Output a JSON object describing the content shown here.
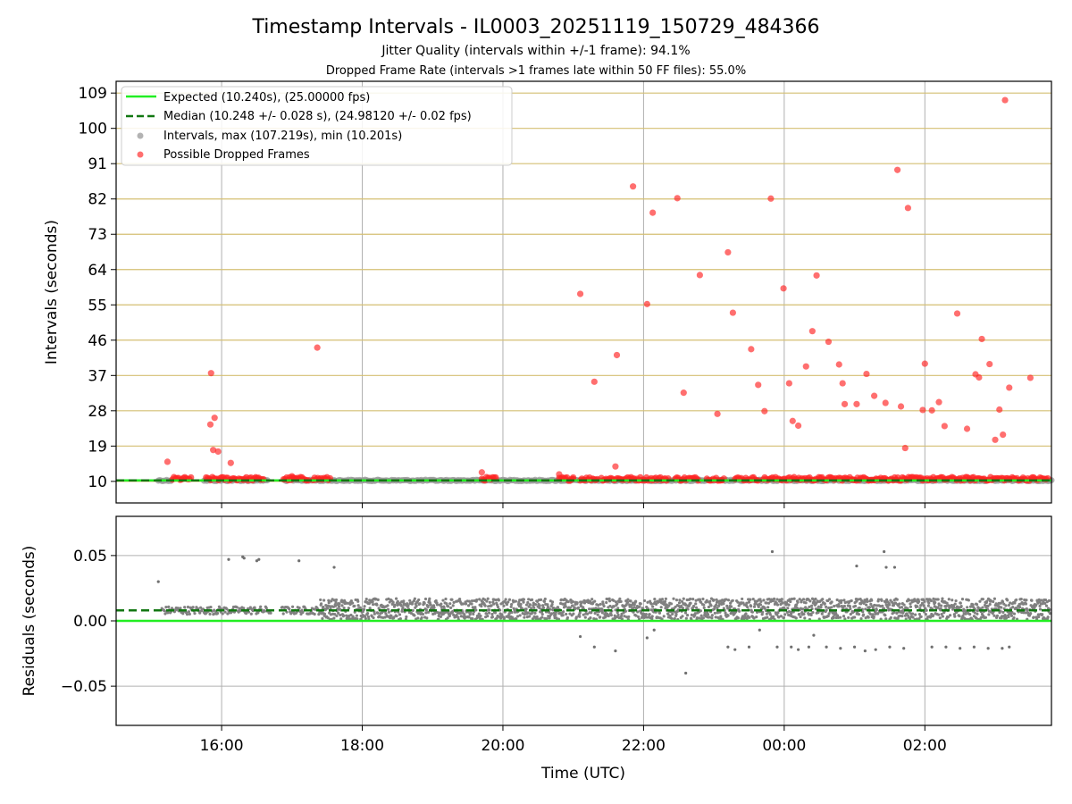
{
  "chart_data": {
    "type": "scatter",
    "title": "Timestamp Intervals - IL0003_20251119_150729_484366",
    "subtitles": [
      "Jitter Quality (intervals within +/-1 frame): 94.1%",
      "Dropped Frame Rate (intervals >1 frames late within 50 FF files): 55.0%"
    ],
    "xlabel": "Time (UTC)",
    "xlim_hours": [
      14.5,
      27.8
    ],
    "xticks": [
      {
        "h": 16,
        "label": "16:00"
      },
      {
        "h": 18,
        "label": "18:00"
      },
      {
        "h": 20,
        "label": "20:00"
      },
      {
        "h": 22,
        "label": "22:00"
      },
      {
        "h": 24,
        "label": "00:00"
      },
      {
        "h": 26,
        "label": "02:00"
      }
    ],
    "top_panel": {
      "ylabel": "Intervals (seconds)",
      "ylim": [
        4.5,
        112
      ],
      "yticks": [
        10,
        19,
        28,
        37,
        46,
        55,
        64,
        73,
        82,
        91,
        100,
        109
      ],
      "expected": 10.24,
      "median": 10.248,
      "legend": [
        {
          "key": "expected",
          "label": "Expected (10.240s), (25.00000 fps)",
          "color": "#22ee22"
        },
        {
          "key": "median",
          "label": "Median (10.248 +/- 0.028 s), (24.98120 +/- 0.02 fps)",
          "color": "#117711"
        },
        {
          "key": "intervals",
          "label": "Intervals, max (107.219s), min (10.201s)",
          "color": "#999999"
        },
        {
          "key": "dropped",
          "label": "Possible Dropped Frames",
          "color": "#ff2222"
        }
      ],
      "interval_ranges": [
        [
          15.1,
          15.28
        ],
        [
          15.75,
          16.65
        ],
        [
          16.9,
          17.4
        ],
        [
          17.4,
          27.8
        ]
      ],
      "dense_red_ranges": [
        [
          15.3,
          15.58
        ],
        [
          15.78,
          16.6
        ],
        [
          16.88,
          17.25
        ],
        [
          17.3,
          17.55
        ],
        [
          19.7,
          19.9
        ],
        [
          20.8,
          21.0
        ],
        [
          21.1,
          21.35
        ],
        [
          21.4,
          21.8
        ],
        [
          21.8,
          22.35
        ],
        [
          22.45,
          22.8
        ],
        [
          22.9,
          23.15
        ],
        [
          23.3,
          23.65
        ],
        [
          23.7,
          27.75
        ]
      ],
      "dropped_points": [
        [
          15.23,
          15.0
        ],
        [
          15.85,
          37.6
        ],
        [
          15.84,
          24.5
        ],
        [
          15.9,
          26.2
        ],
        [
          15.88,
          18.0
        ],
        [
          15.95,
          17.6
        ],
        [
          16.13,
          14.7
        ],
        [
          17.36,
          44.1
        ],
        [
          17.0,
          11.3
        ],
        [
          19.7,
          12.3
        ],
        [
          20.8,
          11.8
        ],
        [
          21.0,
          11.0
        ],
        [
          21.1,
          57.8
        ],
        [
          21.3,
          35.4
        ],
        [
          21.6,
          13.8
        ],
        [
          21.62,
          42.2
        ],
        [
          21.85,
          85.2
        ],
        [
          22.05,
          55.2
        ],
        [
          22.13,
          78.5
        ],
        [
          22.48,
          82.2
        ],
        [
          22.57,
          32.6
        ],
        [
          22.8,
          62.6
        ],
        [
          23.05,
          27.2
        ],
        [
          23.2,
          68.4
        ],
        [
          23.27,
          53.0
        ],
        [
          23.53,
          43.7
        ],
        [
          23.63,
          34.6
        ],
        [
          23.72,
          27.9
        ],
        [
          23.81,
          82.1
        ],
        [
          23.99,
          59.2
        ],
        [
          24.07,
          35.0
        ],
        [
          24.12,
          25.4
        ],
        [
          24.2,
          24.2
        ],
        [
          24.31,
          39.3
        ],
        [
          24.4,
          48.3
        ],
        [
          24.46,
          62.5
        ],
        [
          24.63,
          45.6
        ],
        [
          24.78,
          39.8
        ],
        [
          24.83,
          35.0
        ],
        [
          24.86,
          29.7
        ],
        [
          25.03,
          29.7
        ],
        [
          25.17,
          37.4
        ],
        [
          25.28,
          31.8
        ],
        [
          25.44,
          30.0
        ],
        [
          25.61,
          89.4
        ],
        [
          25.66,
          29.1
        ],
        [
          25.72,
          18.5
        ],
        [
          25.76,
          79.7
        ],
        [
          25.97,
          28.2
        ],
        [
          26.0,
          40.0
        ],
        [
          26.1,
          28.1
        ],
        [
          26.2,
          30.2
        ],
        [
          26.28,
          24.1
        ],
        [
          26.46,
          52.8
        ],
        [
          26.6,
          23.4
        ],
        [
          26.72,
          37.3
        ],
        [
          26.77,
          36.5
        ],
        [
          26.81,
          46.3
        ],
        [
          26.92,
          39.9
        ],
        [
          27.0,
          20.6
        ],
        [
          27.06,
          28.3
        ],
        [
          27.11,
          21.9
        ],
        [
          27.14,
          107.2
        ],
        [
          27.2,
          33.9
        ],
        [
          27.5,
          36.4
        ]
      ]
    },
    "bottom_panel": {
      "ylabel": "Residuals (seconds)",
      "ylim": [
        -0.08,
        0.08
      ],
      "yticks": [
        {
          "v": 0.05,
          "label": "0.05"
        },
        {
          "v": 0.0,
          "label": "0.00"
        },
        {
          "v": -0.05,
          "label": "−0.05"
        }
      ],
      "expected": 0.0,
      "median": 0.008,
      "outliers": [
        [
          15.1,
          0.03
        ],
        [
          16.1,
          0.047
        ],
        [
          16.3,
          0.049
        ],
        [
          16.32,
          0.048
        ],
        [
          16.5,
          0.046
        ],
        [
          16.53,
          0.047
        ],
        [
          17.1,
          0.046
        ],
        [
          17.6,
          0.041
        ],
        [
          21.1,
          -0.012
        ],
        [
          21.3,
          -0.02
        ],
        [
          21.6,
          -0.023
        ],
        [
          22.05,
          -0.013
        ],
        [
          22.15,
          -0.007
        ],
        [
          22.6,
          -0.04
        ],
        [
          23.2,
          -0.02
        ],
        [
          23.3,
          -0.022
        ],
        [
          23.5,
          -0.02
        ],
        [
          23.65,
          -0.007
        ],
        [
          23.83,
          0.053
        ],
        [
          23.9,
          -0.02
        ],
        [
          24.1,
          -0.02
        ],
        [
          24.2,
          -0.022
        ],
        [
          24.35,
          -0.02
        ],
        [
          24.42,
          -0.011
        ],
        [
          24.6,
          -0.02
        ],
        [
          24.8,
          -0.021
        ],
        [
          25.0,
          -0.02
        ],
        [
          25.03,
          0.042
        ],
        [
          25.15,
          -0.023
        ],
        [
          25.3,
          -0.022
        ],
        [
          25.42,
          0.053
        ],
        [
          25.45,
          0.041
        ],
        [
          25.5,
          -0.02
        ],
        [
          25.57,
          0.041
        ],
        [
          25.7,
          -0.021
        ],
        [
          26.1,
          -0.02
        ],
        [
          26.3,
          -0.02
        ],
        [
          26.5,
          -0.021
        ],
        [
          26.7,
          -0.02
        ],
        [
          26.9,
          -0.021
        ],
        [
          27.1,
          -0.021
        ],
        [
          27.2,
          -0.02
        ]
      ]
    }
  }
}
